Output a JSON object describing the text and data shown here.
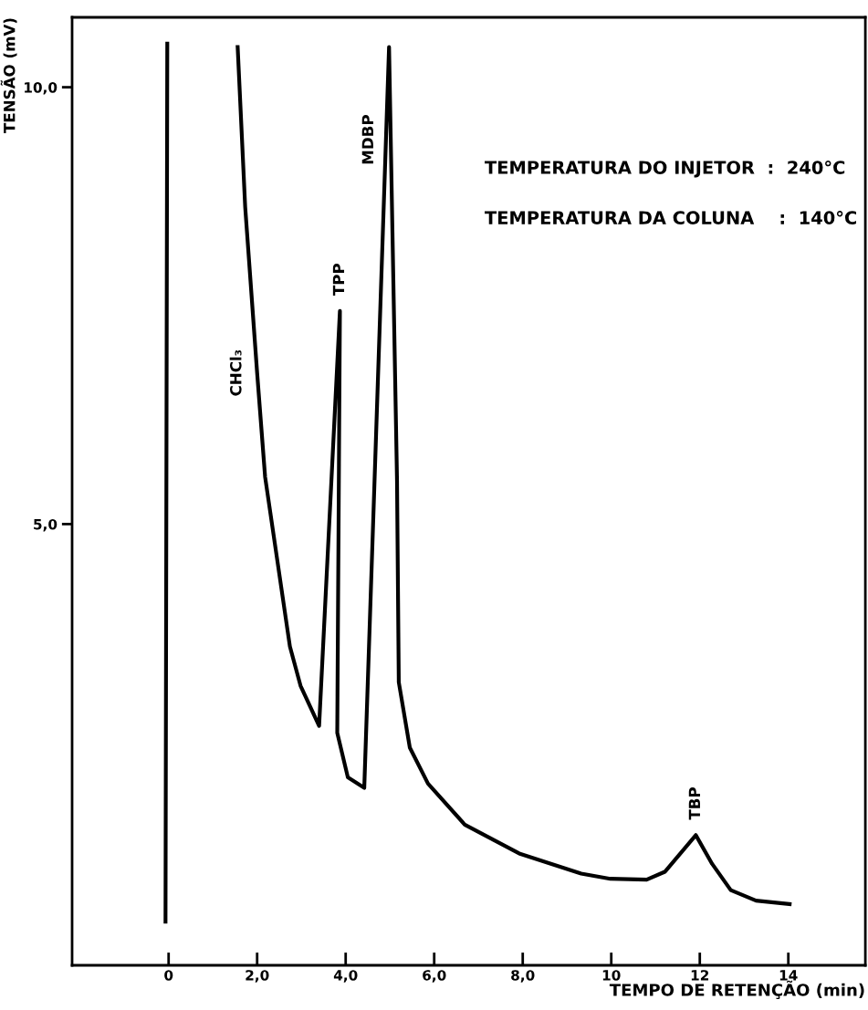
{
  "chart_data": {
    "type": "line",
    "xlabel": "TEMPO DE RETENÇÃO (min)",
    "ylabel": "TENSÃO (mV)",
    "xlim": [
      -2.18,
      15.74
    ],
    "ylim": [
      -0.05,
      10.8
    ],
    "xticks": [
      0,
      {
        "value": 2,
        "label": "2,0"
      },
      {
        "value": 4,
        "label": "4,0"
      },
      {
        "value": 6,
        "label": "6,0"
      },
      {
        "value": 8,
        "label": "8,0"
      },
      10,
      12,
      14
    ],
    "yticks": [
      {
        "value": 5,
        "label": "5,0"
      },
      {
        "value": 10,
        "label": "10,0"
      }
    ],
    "grid": false,
    "legend": false,
    "marker": "none",
    "line_style": "solid",
    "series": [
      {
        "color": "#000000",
        "x": [
          -0.07,
          -0.03,
          0.8,
          1.56,
          1.73,
          2.0,
          2.18,
          2.74,
          2.98,
          3.4,
          3.87,
          3.81,
          4.05,
          4.42,
          4.98,
          5.16,
          5.2,
          5.45,
          5.86,
          6.69,
          7.92,
          9.32,
          9.98,
          10.8,
          11.21,
          11.91,
          12.28,
          12.7,
          13.27,
          14.03
        ],
        "values": [
          0.45,
          10.5,
          null,
          10.46,
          8.63,
          6.73,
          5.54,
          3.6,
          3.15,
          2.69,
          7.44,
          2.61,
          2.1,
          1.98,
          10.46,
          5.5,
          3.19,
          2.44,
          2.03,
          1.56,
          1.23,
          1.0,
          0.94,
          0.93,
          1.02,
          1.44,
          1.11,
          0.81,
          0.69,
          0.65
        ]
      }
    ],
    "annotations": [
      {
        "text": "CHCl₃",
        "x": 2.0,
        "y": 6.73
      },
      {
        "text": "TPP",
        "x": 3.87,
        "y": 7.44
      },
      {
        "text": "MDBP",
        "x": 4.98,
        "y": 9.4
      },
      {
        "text": "TBP",
        "x": 11.91,
        "y": 1.44
      },
      "TEMPERATURA DO INJETOR  :  240°C",
      "TEMPERATURA DA COLUNA    :  140°C"
    ]
  }
}
